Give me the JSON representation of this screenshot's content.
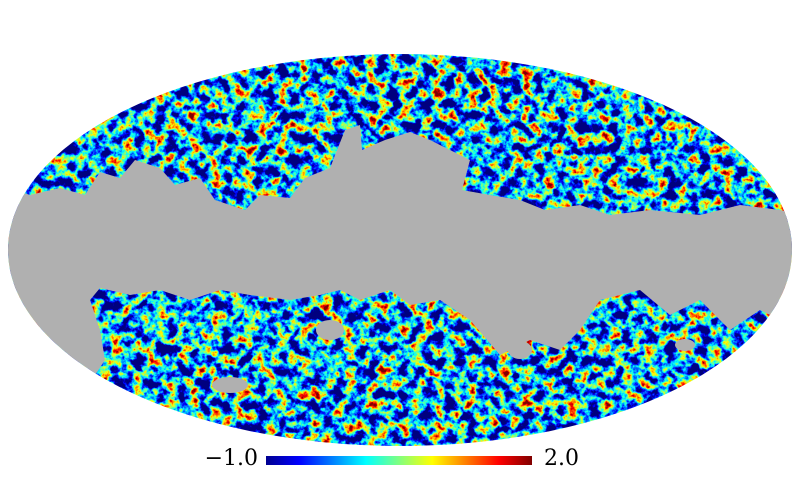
{
  "colorbar": {
    "min_label": "−1.0",
    "max_label": "2.0"
  }
}
